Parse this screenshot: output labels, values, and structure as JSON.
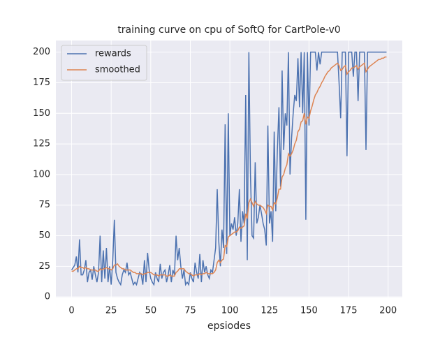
{
  "chart_data": {
    "type": "line",
    "title": "training curve on cpu of SoftQ for CartPole-v0",
    "x_label": "epsiodes",
    "x": [
      0,
      1,
      2,
      3,
      4,
      5,
      6,
      7,
      8,
      9,
      10,
      11,
      12,
      13,
      14,
      15,
      16,
      17,
      18,
      19,
      20,
      21,
      22,
      23,
      24,
      25,
      26,
      27,
      28,
      29,
      30,
      31,
      32,
      33,
      34,
      35,
      36,
      37,
      38,
      39,
      40,
      41,
      42,
      43,
      44,
      45,
      46,
      47,
      48,
      49,
      50,
      51,
      52,
      53,
      54,
      55,
      56,
      57,
      58,
      59,
      60,
      61,
      62,
      63,
      64,
      65,
      66,
      67,
      68,
      69,
      70,
      71,
      72,
      73,
      74,
      75,
      76,
      77,
      78,
      79,
      80,
      81,
      82,
      83,
      84,
      85,
      86,
      87,
      88,
      89,
      90,
      91,
      92,
      93,
      94,
      95,
      96,
      97,
      98,
      99,
      100,
      101,
      102,
      103,
      104,
      105,
      106,
      107,
      108,
      109,
      110,
      111,
      112,
      113,
      114,
      115,
      116,
      117,
      118,
      119,
      120,
      121,
      122,
      123,
      124,
      125,
      126,
      127,
      128,
      129,
      130,
      131,
      132,
      133,
      134,
      135,
      136,
      137,
      138,
      139,
      140,
      141,
      142,
      143,
      144,
      145,
      146,
      147,
      148,
      149,
      150,
      151,
      152,
      153,
      154,
      155,
      156,
      157,
      158,
      159,
      160,
      161,
      162,
      163,
      164,
      165,
      166,
      167,
      168,
      169,
      170,
      171,
      172,
      173,
      174,
      175,
      176,
      177,
      178,
      179,
      180,
      181,
      182,
      183,
      184,
      185,
      186,
      187,
      188,
      189,
      190,
      191,
      192,
      193,
      194,
      195,
      196,
      197,
      198,
      199
    ],
    "series": [
      {
        "name": "rewards",
        "color": "#4c72b0",
        "values": [
          22,
          24,
          26,
          33,
          20,
          47,
          18,
          18,
          22,
          30,
          12,
          20,
          22,
          14,
          25,
          18,
          12,
          20,
          50,
          12,
          38,
          15,
          40,
          12,
          25,
          10,
          30,
          63,
          20,
          15,
          12,
          10,
          18,
          22,
          20,
          28,
          18,
          20,
          15,
          10,
          12,
          10,
          15,
          20,
          18,
          10,
          30,
          12,
          36,
          22,
          15,
          12,
          10,
          20,
          15,
          12,
          27,
          15,
          20,
          22,
          12,
          18,
          26,
          12,
          22,
          18,
          50,
          30,
          40,
          25,
          15,
          22,
          10,
          12,
          10,
          20,
          15,
          12,
          28,
          20,
          15,
          35,
          12,
          30,
          20,
          25,
          18,
          15,
          22,
          20,
          30,
          40,
          88,
          45,
          25,
          55,
          40,
          141,
          35,
          150,
          50,
          60,
          55,
          65,
          50,
          60,
          88,
          45,
          70,
          60,
          165,
          30,
          200,
          100,
          50,
          48,
          110,
          60,
          65,
          75,
          68,
          60,
          55,
          42,
          140,
          60,
          70,
          45,
          135,
          70,
          120,
          155,
          90,
          185,
          120,
          150,
          140,
          200,
          100,
          130,
          150,
          165,
          160,
          195,
          155,
          200,
          150,
          200,
          63,
          200,
          140,
          200,
          200,
          200,
          200,
          185,
          200,
          190,
          200,
          200,
          200,
          200,
          200,
          200,
          200,
          200,
          200,
          200,
          200,
          175,
          146,
          200,
          200,
          200,
          115,
          200,
          200,
          200,
          180,
          200,
          200,
          160,
          200,
          200,
          200,
          200,
          120,
          200,
          200,
          200,
          200,
          200,
          200,
          200,
          200,
          200,
          200,
          200,
          200,
          200
        ]
      },
      {
        "name": "smoothed",
        "color": "#dd8452",
        "values": [
          21,
          21,
          22,
          23,
          23,
          25,
          24,
          24,
          23,
          24,
          23,
          23,
          22,
          22,
          22,
          22,
          21,
          21,
          23,
          22,
          23,
          23,
          24,
          23,
          23,
          22,
          23,
          26,
          26,
          27,
          25,
          24,
          23,
          23,
          22,
          22,
          22,
          22,
          21,
          20,
          20,
          19,
          19,
          19,
          19,
          18,
          19,
          19,
          20,
          20,
          20,
          19,
          18,
          18,
          18,
          17,
          18,
          18,
          18,
          18,
          17,
          17,
          18,
          17,
          17,
          17,
          20,
          21,
          23,
          23,
          23,
          23,
          21,
          20,
          19,
          19,
          18,
          17,
          18,
          18,
          18,
          19,
          18,
          19,
          19,
          20,
          19,
          19,
          19,
          19,
          20,
          22,
          28,
          30,
          28,
          30,
          31,
          42,
          41,
          49,
          50,
          51,
          52,
          53,
          53,
          54,
          57,
          56,
          57,
          58,
          68,
          64,
          77,
          80,
          77,
          74,
          78,
          76,
          75,
          75,
          74,
          73,
          71,
          68,
          75,
          74,
          74,
          71,
          77,
          76,
          81,
          88,
          88,
          98,
          100,
          105,
          108,
          117,
          115,
          117,
          120,
          125,
          128,
          135,
          137,
          143,
          144,
          150,
          141,
          147,
          146,
          152,
          156,
          161,
          165,
          167,
          170,
          172,
          175,
          177,
          180,
          182,
          184,
          185,
          187,
          188,
          189,
          190,
          191,
          189,
          185,
          186,
          188,
          189,
          182,
          184,
          185,
          187,
          187,
          188,
          189,
          186,
          188,
          189,
          190,
          191,
          184,
          186,
          188,
          189,
          190,
          191,
          192,
          193,
          194,
          194,
          195,
          195,
          196,
          196
        ]
      }
    ],
    "xlim": [
      -9.95,
      208.95
    ],
    "ylim": [
      -0.5,
      209.5
    ],
    "xticks": [
      0,
      25,
      50,
      75,
      100,
      125,
      150,
      175,
      200
    ],
    "yticks": [
      0,
      25,
      50,
      75,
      100,
      125,
      150,
      175,
      200
    ],
    "grid": true,
    "legend": "upper left"
  }
}
